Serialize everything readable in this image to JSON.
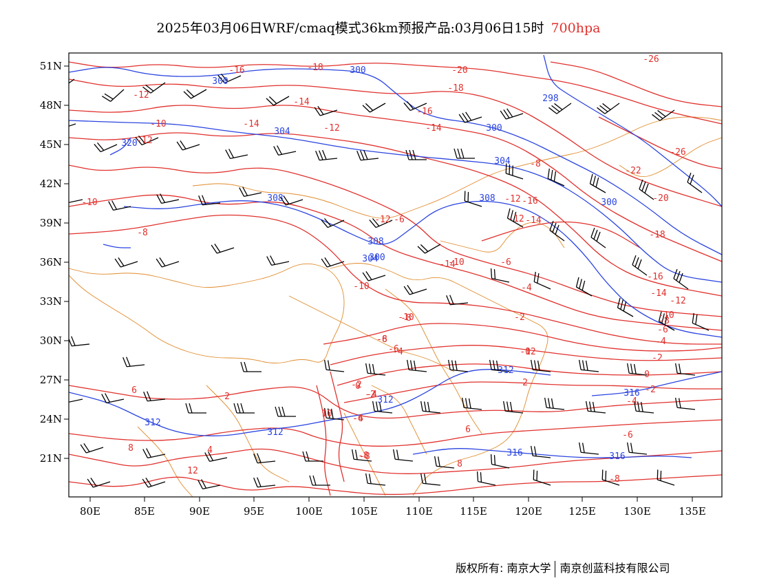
{
  "title": {
    "main": "2025年03月06日WRF/cmaq模式36km预报产品:03月06日15时",
    "level": "700hpa"
  },
  "axes": {
    "x_ticks": [
      "80E",
      "85E",
      "90E",
      "95E",
      "100E",
      "105E",
      "110E",
      "115E",
      "120E",
      "125E",
      "130E",
      "135E"
    ],
    "y_ticks": [
      "51N",
      "48N",
      "45N",
      "42N",
      "39N",
      "36N",
      "33N",
      "30N",
      "27N",
      "24N",
      "21N"
    ]
  },
  "colors": {
    "height_contour": "#2a44e0",
    "temperature_contour": "#e0302c",
    "border": "#e08a2a",
    "barb": "#000000"
  },
  "contour_labels": {
    "height": [
      "300",
      "300",
      "304",
      "298",
      "300",
      "304",
      "308",
      "308",
      "300",
      "312",
      "312",
      "312",
      "316",
      "316",
      "316",
      "312",
      "320",
      "304",
      "300",
      "308"
    ],
    "temperature": [
      "-16",
      "-18",
      "-20",
      "-12",
      "-14",
      "-18",
      "-16",
      "-14",
      "-12",
      "-10",
      "-14",
      "-12",
      "-10",
      "-8",
      "-16",
      "-22",
      "-20",
      "-26",
      "-26",
      "-8",
      "-6",
      "-12",
      "-12",
      "-14",
      "-10",
      "-8",
      "-6",
      "-4",
      "-2",
      "0",
      "-2",
      "-4",
      "-6",
      "-8",
      "-18",
      "-16",
      "-14",
      "-12",
      "-10",
      "-8",
      "-6",
      "-4",
      "-2",
      "0",
      "-2",
      "-4",
      "-6",
      "-8",
      "-10",
      "-12",
      "-10",
      "-8",
      "-6",
      "-4",
      "2",
      "6",
      "8",
      "10",
      "12",
      "8",
      "6",
      "4",
      "2",
      "0",
      "-2",
      "-4",
      "-8",
      "-6",
      "-14",
      "-12"
    ]
  },
  "footer": {
    "left": "版权所有: 南京大学",
    "right": "南京创蓝科技有限公司"
  }
}
